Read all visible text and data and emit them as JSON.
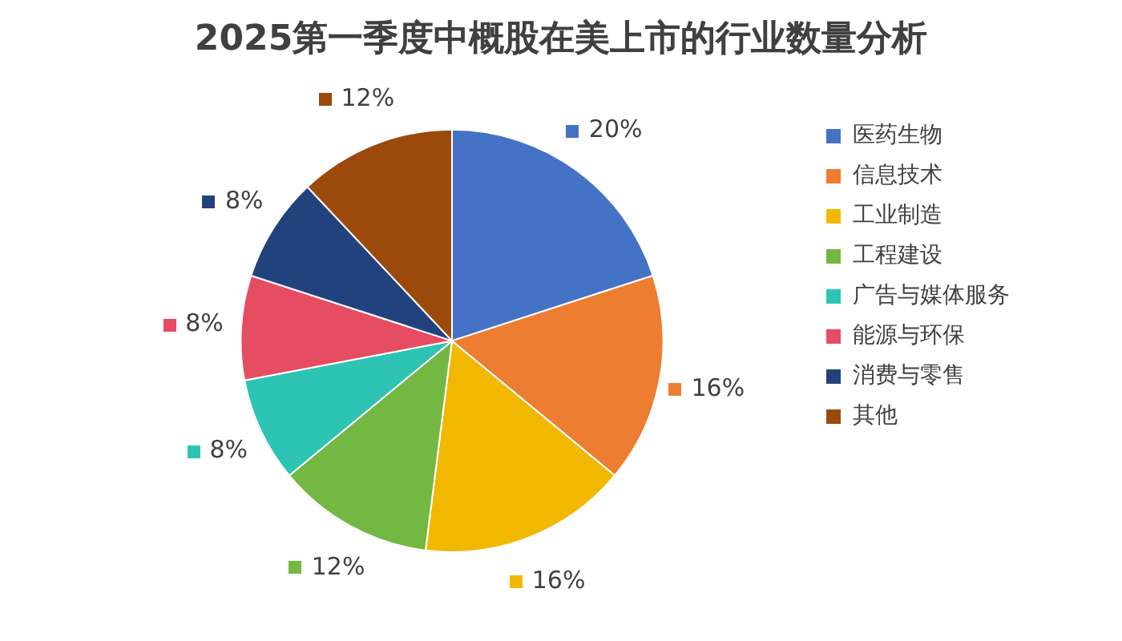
{
  "chart_data": {
    "type": "pie",
    "title": "2025第一季度中概股在美上市的行业数量分析",
    "categories": [
      "医药生物",
      "信息技术",
      "工业制造",
      "工程建设",
      "广告与媒体服务",
      "能源与环保",
      "消费与零售",
      "其他"
    ],
    "values": [
      20,
      16,
      16,
      12,
      8,
      8,
      8,
      12
    ],
    "value_labels": [
      "20%",
      "16%",
      "16%",
      "12%",
      "8%",
      "8%",
      "8%",
      "12%"
    ],
    "colors": [
      "#4472c4",
      "#ed7d31",
      "#f2b800",
      "#72b843",
      "#2ec4b4",
      "#e64c62",
      "#22427e",
      "#9c4a0c"
    ],
    "legend": "right"
  }
}
